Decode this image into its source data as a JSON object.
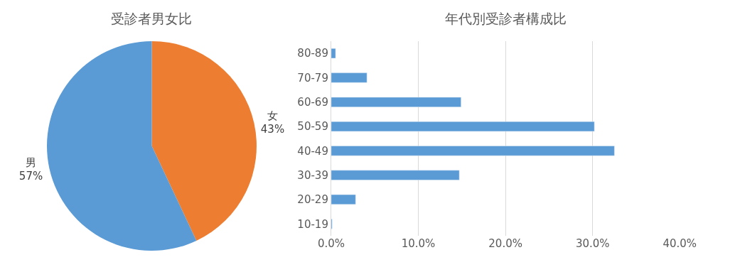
{
  "chart_data": [
    {
      "type": "pie",
      "title": "受診者男女比",
      "categories": [
        "女",
        "男"
      ],
      "values": [
        43,
        57
      ],
      "value_labels": [
        "43%",
        "57%"
      ],
      "colors": [
        "#ed7d31",
        "#5b9bd5"
      ]
    },
    {
      "type": "bar",
      "title": "年代別受診者構成比",
      "orientation": "horizontal",
      "categories": [
        "80-89",
        "70-79",
        "60-69",
        "50-59",
        "40-49",
        "30-39",
        "20-29",
        "10-19"
      ],
      "values": [
        0.5,
        4.1,
        14.9,
        30.2,
        32.5,
        14.7,
        2.8,
        0.1
      ],
      "color": "#5b9bd5",
      "xlim": [
        0,
        40
      ],
      "xticks": [
        {
          "value": 0,
          "label": "0.0%"
        },
        {
          "value": 10,
          "label": "10.0%"
        },
        {
          "value": 20,
          "label": "20.0%"
        },
        {
          "value": 30,
          "label": "30.0%"
        },
        {
          "value": 40,
          "label": "40.0%"
        }
      ],
      "grid": "x"
    }
  ]
}
